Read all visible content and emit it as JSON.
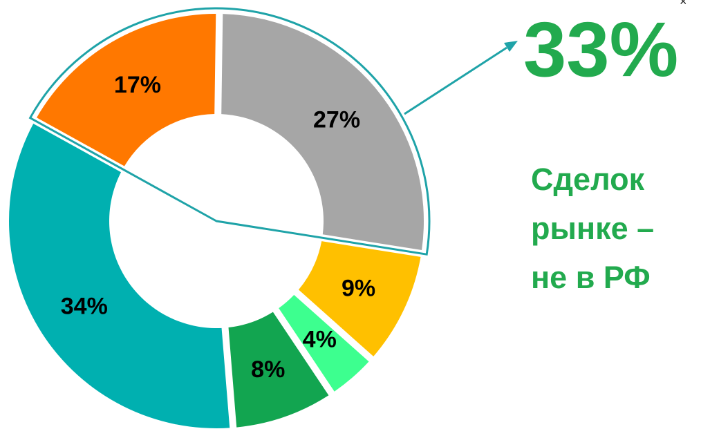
{
  "colors": {
    "highlight_text": "#22AA4E",
    "callout_line": "#1FA3A8",
    "label_text": "#000000"
  },
  "highlight": {
    "value": "33%",
    "caption": "Сделок\nрынке –\nне в РФ"
  },
  "corner_mark": "×",
  "chart_data": {
    "type": "pie",
    "subtype": "donut",
    "slices": [
      {
        "value": 17,
        "label": "17%",
        "color": "#FF7800"
      },
      {
        "value": 27,
        "label": "27%",
        "color": "#A6A6A6"
      },
      {
        "value": 9,
        "label": "9%",
        "color": "#FFC000"
      },
      {
        "value": 4,
        "label": "4%",
        "color": "#3DFF8F"
      },
      {
        "value": 8,
        "label": "8%",
        "color": "#12A550"
      },
      {
        "value": 34,
        "label": "34%",
        "color": "#00B0B0"
      }
    ],
    "highlighted_slices": [
      "17%",
      "27%"
    ],
    "legend": "none"
  }
}
